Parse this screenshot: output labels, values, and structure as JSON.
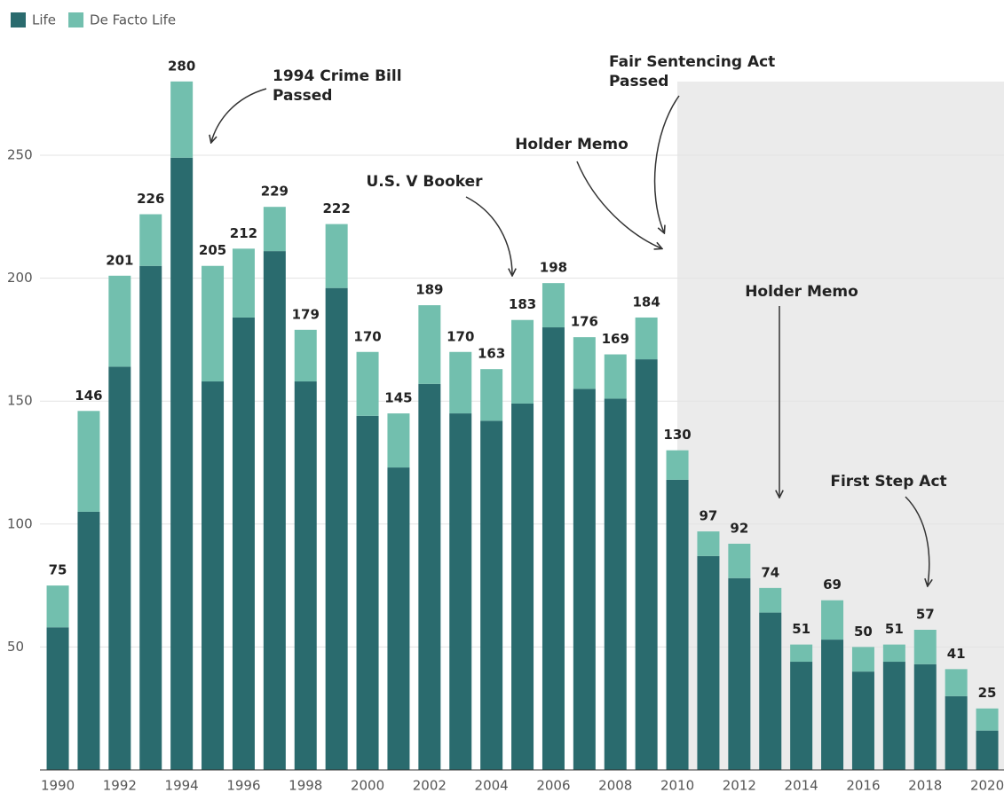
{
  "chart_data": {
    "type": "stacked_bar",
    "x": [
      1990,
      1991,
      1992,
      1993,
      1994,
      1995,
      1996,
      1997,
      1998,
      1999,
      2000,
      2001,
      2002,
      2003,
      2004,
      2005,
      2006,
      2007,
      2008,
      2009,
      2010,
      2011,
      2012,
      2013,
      2014,
      2015,
      2016,
      2017,
      2018,
      2019,
      2020
    ],
    "xlim": [
      1989.5,
      2020.5
    ],
    "xticks": [
      1990,
      1992,
      1994,
      1996,
      1998,
      2000,
      2002,
      2004,
      2006,
      2008,
      2010,
      2012,
      2014,
      2016,
      2018,
      2020
    ],
    "ylim": [
      0,
      290
    ],
    "yticks": [
      50,
      100,
      150,
      200,
      250
    ],
    "grid": true,
    "legend": "top-left",
    "series": [
      {
        "name": "Life",
        "color": "#2a6b6e",
        "values": [
          58,
          105,
          164,
          205,
          249,
          158,
          184,
          211,
          158,
          196,
          144,
          123,
          157,
          145,
          142,
          149,
          180,
          155,
          151,
          167,
          118,
          87,
          78,
          64,
          44,
          53,
          40,
          44,
          43,
          30,
          16
        ]
      },
      {
        "name": "De Facto Life",
        "color": "#72bfae",
        "values": [
          17,
          41,
          37,
          21,
          31,
          47,
          28,
          18,
          21,
          26,
          26,
          22,
          32,
          25,
          21,
          34,
          18,
          21,
          18,
          17,
          12,
          10,
          14,
          10,
          7,
          16,
          10,
          7,
          14,
          11,
          9
        ]
      }
    ],
    "totals": [
      75,
      146,
      201,
      226,
      280,
      205,
      212,
      229,
      179,
      222,
      170,
      145,
      189,
      170,
      163,
      183,
      198,
      176,
      169,
      184,
      130,
      97,
      92,
      74,
      51,
      69,
      50,
      51,
      57,
      41,
      25
    ],
    "annotations": [
      {
        "lines": [
          "1994 Crime Bill",
          "Passed"
        ]
      },
      {
        "lines": [
          "Fair Sentencing Act",
          "Passed"
        ]
      },
      {
        "lines": [
          "Holder Memo"
        ]
      },
      {
        "lines": [
          "U.S. V Booker"
        ]
      },
      {
        "lines": [
          "Holder Memo"
        ]
      },
      {
        "lines": [
          "First Step Act"
        ]
      }
    ]
  }
}
